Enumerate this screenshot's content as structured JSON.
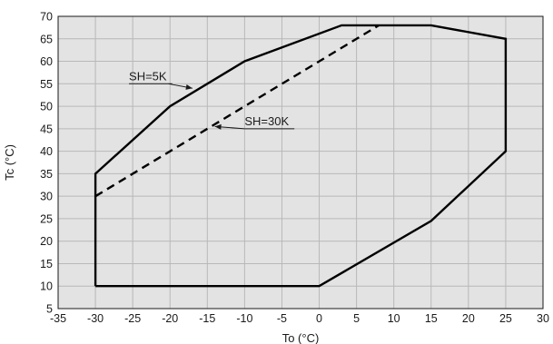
{
  "chart_data": {
    "type": "line",
    "xlabel": "To (°C)",
    "ylabel": "Tc (°C)",
    "xlim": [
      -35,
      30
    ],
    "ylim": [
      5,
      70
    ],
    "x_ticks": [
      -35,
      -30,
      -25,
      -20,
      -15,
      -10,
      -5,
      0,
      5,
      10,
      15,
      20,
      25,
      30
    ],
    "y_ticks": [
      5,
      10,
      15,
      20,
      25,
      30,
      35,
      40,
      45,
      50,
      55,
      60,
      65,
      70
    ],
    "grid": true,
    "background_color": "#e3e3e3",
    "grid_color": "#b8b8b8",
    "series": [
      {
        "style": "solid",
        "color": "#000000",
        "points": [
          [
            -30,
            10
          ],
          [
            0,
            10
          ],
          [
            15,
            24.5
          ],
          [
            25,
            40
          ],
          [
            25,
            65
          ],
          [
            15,
            68
          ],
          [
            3,
            68
          ],
          [
            -10,
            60
          ],
          [
            -20,
            50
          ],
          [
            -30,
            35
          ],
          [
            -30,
            10
          ]
        ]
      },
      {
        "style": "dashed",
        "color": "#000000",
        "points": [
          [
            -30,
            30
          ],
          [
            8,
            68
          ]
        ]
      }
    ],
    "annotations": [
      {
        "text": "SH=5K",
        "label_at": [
          -25.5,
          55
        ],
        "arrow_to": [
          -17,
          54
        ]
      },
      {
        "text": "SH=30K",
        "label_at": [
          -10,
          45
        ],
        "arrow_to": [
          -14,
          45.5
        ]
      }
    ]
  }
}
